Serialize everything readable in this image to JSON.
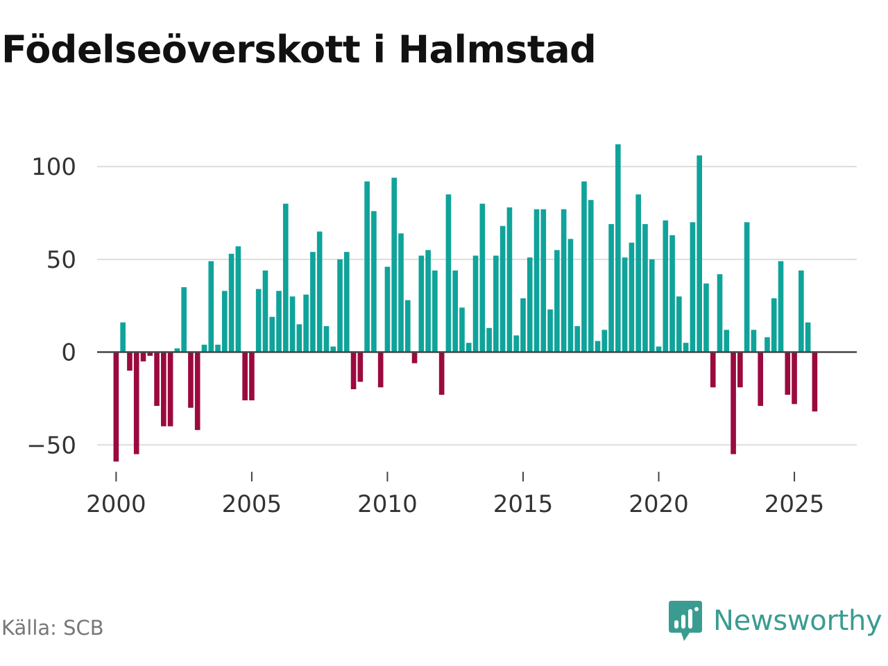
{
  "title": "Födelseöverskott i Halmstad",
  "source": "Källa: SCB",
  "brand": {
    "name": "Newsworthy",
    "icon": "newsworthy-logo-icon",
    "color": "#3a9c91"
  },
  "colors": {
    "positive": "#0fa39a",
    "negative": "#9b0a3e",
    "grid": "#dddddd",
    "zero_line": "#444444"
  },
  "chart_data": {
    "type": "bar",
    "title": "Födelseöverskott i Halmstad",
    "xlabel": "",
    "ylabel": "",
    "ylim": [
      -60,
      115
    ],
    "xlim": [
      1999.3,
      2027.3
    ],
    "y_ticks": [
      100,
      50,
      0,
      -50
    ],
    "y_tick_labels": [
      "100",
      "50",
      "0",
      "−50"
    ],
    "x_ticks": [
      2000,
      2005,
      2010,
      2015,
      2020,
      2025
    ],
    "x_tick_labels": [
      "2000",
      "2005",
      "2010",
      "2015",
      "2020",
      "2025"
    ],
    "frequency": "quarterly",
    "series": [
      {
        "name": "Födelseöverskott",
        "start": "2000 Q1",
        "values": [
          -59,
          16,
          -10,
          -55,
          -5,
          -2,
          -29,
          -40,
          -40,
          2,
          35,
          -30,
          -42,
          4,
          49,
          4,
          33,
          53,
          57,
          -26,
          -26,
          34,
          44,
          19,
          33,
          80,
          30,
          15,
          31,
          54,
          65,
          14,
          3,
          50,
          54,
          -20,
          -16,
          92,
          76,
          -19,
          46,
          94,
          64,
          28,
          -6,
          52,
          55,
          44,
          -23,
          85,
          44,
          24,
          5,
          52,
          80,
          13,
          52,
          68,
          78,
          9,
          29,
          51,
          77,
          77,
          23,
          55,
          77,
          61,
          14,
          92,
          82,
          6,
          12,
          69,
          112,
          51,
          59,
          85,
          69,
          50,
          3,
          71,
          63,
          30,
          5,
          70,
          106,
          37,
          -19,
          42,
          12,
          -55,
          -19,
          70,
          12,
          -29,
          8,
          29,
          49,
          -23,
          -28,
          44,
          16,
          -32
        ]
      }
    ]
  }
}
